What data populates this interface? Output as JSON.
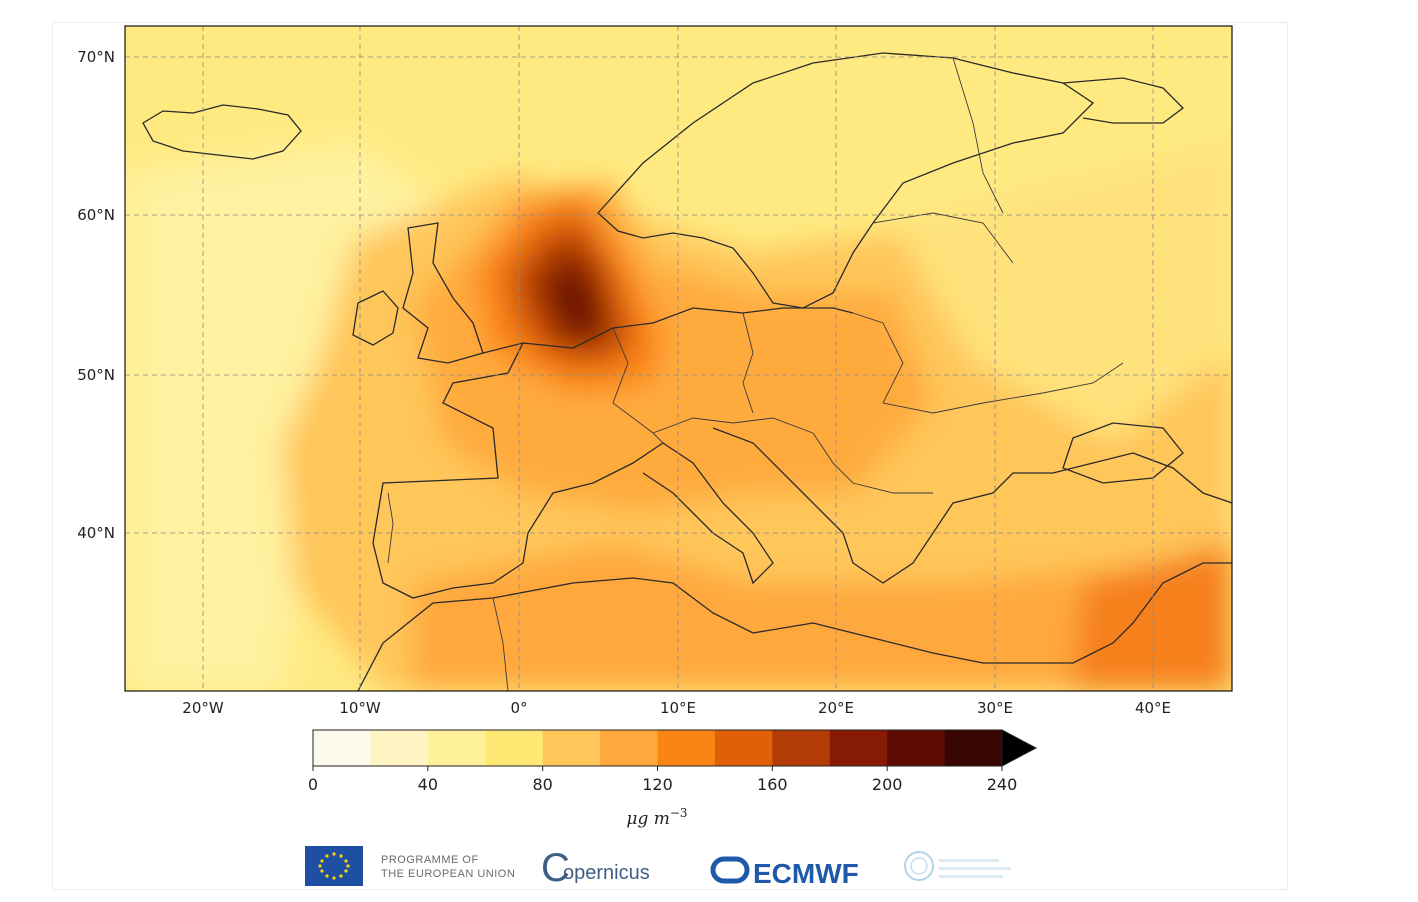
{
  "map": {
    "lat_ticks": [
      "70°N",
      "60°N",
      "50°N",
      "40°N"
    ],
    "lon_ticks": [
      "20°W",
      "10°W",
      "0°",
      "10°E",
      "20°E",
      "30°E",
      "40°E"
    ]
  },
  "colorbar": {
    "unit_prefix": "μg m",
    "unit_exp": "−3",
    "tick_labels": [
      "0",
      "40",
      "80",
      "120",
      "160",
      "200",
      "240"
    ],
    "levels": [
      0,
      20,
      40,
      60,
      80,
      100,
      120,
      140,
      160,
      180,
      200,
      220,
      240
    ],
    "colors": [
      "#fffbea",
      "#fff4c2",
      "#fff09a",
      "#ffe874",
      "#ffc759",
      "#ffa83c",
      "#fa8414",
      "#df6008",
      "#b33c06",
      "#861a02",
      "#5e0d02",
      "#3a0604"
    ],
    "extend": "max",
    "extend_color": "#000000"
  },
  "logos": {
    "eu_line1": "PROGRAMME OF",
    "eu_line2": "THE EUROPEAN UNION",
    "copernicus": "opernicus",
    "copernicus_c": "C",
    "ecmwf": "ECMWF"
  }
}
